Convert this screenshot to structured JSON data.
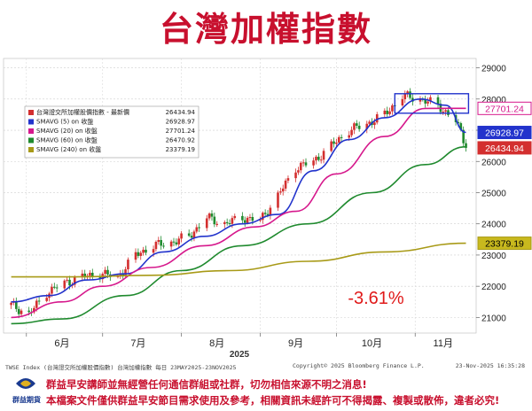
{
  "title": "台灣加權指數",
  "chart_data": {
    "type": "candlestick",
    "year_label": "2025",
    "x_tick_labels": [
      "6月",
      "7月",
      "8月",
      "9月",
      "10月",
      "11月"
    ],
    "y_ticks": [
      21000,
      22000,
      23000,
      24000,
      25000,
      26000,
      27000,
      28000,
      29000
    ],
    "ylim": [
      20500,
      29300
    ],
    "change_label": "-3.61%",
    "legend": [
      {
        "name": "台灣證交所加權股價指數 - 最新價",
        "value": "26434.94",
        "color": "#d32f2f"
      },
      {
        "name": "SMAVG (5)  on 收盤",
        "value": "26928.97",
        "color": "#2233cc"
      },
      {
        "name": "SMAVG (20)  on 收盤",
        "value": "27701.24",
        "color": "#d6188c"
      },
      {
        "name": "SMAVG (60)  on 收盤",
        "value": "26470.92",
        "color": "#1f8a2e"
      },
      {
        "name": "SMAVG (240)  on 收盤",
        "value": "23379.19",
        "color": "#a89a17"
      }
    ],
    "last_value_labels": [
      {
        "value": "27701.24",
        "color": "#d6188c",
        "text_color": "#d6188c",
        "bg": "#ffffff"
      },
      {
        "value": "26928.97",
        "color": "#2233cc",
        "text_color": "#ffffff",
        "bg": "#2233cc"
      },
      {
        "value": "26434.94",
        "color": "#d32f2f",
        "text_color": "#ffffff",
        "bg": "#d32f2f"
      },
      {
        "value": "23379.19",
        "color": "#a89a17",
        "text_color": "#000000",
        "bg": "#c8b91e"
      }
    ],
    "ohlc_anchors": [
      [
        "2025-05-26",
        21400
      ],
      [
        "2025-06-02",
        21100
      ],
      [
        "2025-06-09",
        21800
      ],
      [
        "2025-06-16",
        22100
      ],
      [
        "2025-06-23",
        22300
      ],
      [
        "2025-06-30",
        22400
      ],
      [
        "2025-07-07",
        22300
      ],
      [
        "2025-07-14",
        23000
      ],
      [
        "2025-07-21",
        23300
      ],
      [
        "2025-07-28",
        23400
      ],
      [
        "2025-08-04",
        23600
      ],
      [
        "2025-08-11",
        24200
      ],
      [
        "2025-08-18",
        24000
      ],
      [
        "2025-08-25",
        24200
      ],
      [
        "2025-09-01",
        24100
      ],
      [
        "2025-09-08",
        24900
      ],
      [
        "2025-09-15",
        25800
      ],
      [
        "2025-09-22",
        26000
      ],
      [
        "2025-09-29",
        26500
      ],
      [
        "2025-10-06",
        27000
      ],
      [
        "2025-10-13",
        27200
      ],
      [
        "2025-10-20",
        27500
      ],
      [
        "2025-10-27",
        28100
      ],
      [
        "2025-11-03",
        28000
      ],
      [
        "2025-11-10",
        27800
      ],
      [
        "2025-11-17",
        27300
      ],
      [
        "2025-11-20",
        26700
      ],
      [
        "2025-11-21",
        26434.94
      ]
    ],
    "sma_series": [
      {
        "name": "SMAVG (5)",
        "color": "#2233cc",
        "points": [
          [
            "2025-05-26",
            21500
          ],
          [
            "2025-06-10",
            21700
          ],
          [
            "2025-06-25",
            22200
          ],
          [
            "2025-07-10",
            22400
          ],
          [
            "2025-07-25",
            23100
          ],
          [
            "2025-08-10",
            23600
          ],
          [
            "2025-08-25",
            24000
          ],
          [
            "2025-09-08",
            24300
          ],
          [
            "2025-09-22",
            25700
          ],
          [
            "2025-10-06",
            26700
          ],
          [
            "2025-10-20",
            27400
          ],
          [
            "2025-11-03",
            28000
          ],
          [
            "2025-11-13",
            27800
          ],
          [
            "2025-11-21",
            26928.97
          ]
        ]
      },
      {
        "name": "SMAVG (20)",
        "color": "#d6188c",
        "points": [
          [
            "2025-05-26",
            21000
          ],
          [
            "2025-06-15",
            21500
          ],
          [
            "2025-07-01",
            22000
          ],
          [
            "2025-07-20",
            22600
          ],
          [
            "2025-08-10",
            23300
          ],
          [
            "2025-08-30",
            23900
          ],
          [
            "2025-09-15",
            24400
          ],
          [
            "2025-10-01",
            25600
          ],
          [
            "2025-10-20",
            26800
          ],
          [
            "2025-11-05",
            27700
          ],
          [
            "2025-11-21",
            27701.24
          ]
        ]
      },
      {
        "name": "SMAVG (60)",
        "color": "#1f8a2e",
        "points": [
          [
            "2025-05-26",
            20800
          ],
          [
            "2025-06-15",
            20950
          ],
          [
            "2025-07-10",
            21700
          ],
          [
            "2025-08-01",
            22500
          ],
          [
            "2025-08-25",
            23300
          ],
          [
            "2025-09-20",
            24000
          ],
          [
            "2025-10-15",
            25000
          ],
          [
            "2025-11-05",
            25900
          ],
          [
            "2025-11-21",
            26470.92
          ]
        ]
      },
      {
        "name": "SMAVG (240)",
        "color": "#a89a17",
        "points": [
          [
            "2025-05-26",
            22300
          ],
          [
            "2025-06-20",
            22300
          ],
          [
            "2025-07-20",
            22350
          ],
          [
            "2025-08-20",
            22500
          ],
          [
            "2025-09-20",
            22800
          ],
          [
            "2025-10-20",
            23100
          ],
          [
            "2025-11-21",
            23379.19
          ]
        ]
      }
    ]
  },
  "footer": {
    "left": "TWSE Index (台灣證交所加權股價指數) 台灣加權指數 每日 23MAY2025-23NOV2025",
    "middle": "Copyright© 2025 Bloomberg Finance L.P.",
    "right": "23-Nov-2025 16:35:28"
  },
  "disclaimer": {
    "logo_text": "群益期貨",
    "line1": "群益早安講師並無經營任何通信群組或社群，切勿相信來源不明之消息!",
    "line2": "本檔案文件僅供群益早安節目需求使用及參考，相關資訊未經許可不得揭露、複製或散佈，違者必究!"
  }
}
